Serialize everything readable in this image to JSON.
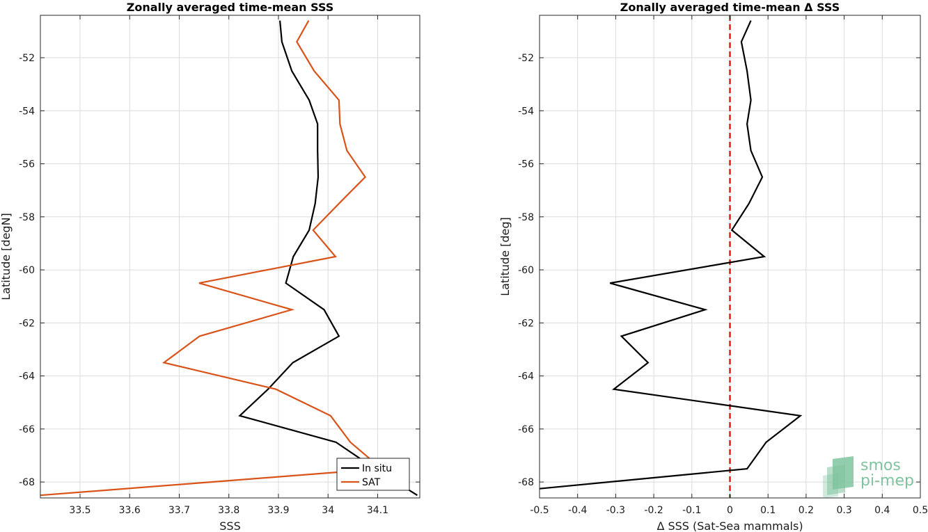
{
  "chart_data": [
    {
      "type": "line",
      "title": "Zonally averaged time-mean SSS",
      "xlabel": "SSS",
      "ylabel": "Latitude [degN]",
      "xlim": [
        33.42,
        34.185
      ],
      "ylim": [
        -68.6,
        -50.4
      ],
      "xticks": [
        33.5,
        33.6,
        33.7,
        33.8,
        33.9,
        34.0,
        34.1
      ],
      "xtick_labels": [
        "33.5",
        "33.6",
        "33.7",
        "33.8",
        "33.9",
        "34",
        "34.1"
      ],
      "yticks": [
        -52,
        -54,
        -56,
        -58,
        -60,
        -62,
        -64,
        -66,
        -68
      ],
      "ytick_labels": [
        "-52",
        "-54",
        "-56",
        "-58",
        "-60",
        "-62",
        "-64",
        "-66",
        "-68"
      ],
      "grid": true,
      "legend": "bottom-right",
      "series": [
        {
          "name": "In situ",
          "color": "#000000",
          "lat": [
            -50.6,
            -51.4,
            -52.5,
            -53.6,
            -54.5,
            -55.5,
            -56.5,
            -57.5,
            -58.5,
            -59.5,
            -60.5,
            -61.5,
            -62.5,
            -63.5,
            -64.5,
            -65.5,
            -66.5,
            -67.5,
            -68.5
          ],
          "values": [
            33.903,
            33.907,
            33.927,
            33.962,
            33.979,
            33.979,
            33.98,
            33.974,
            33.962,
            33.93,
            33.915,
            33.992,
            34.022,
            33.929,
            33.879,
            33.822,
            34.016,
            34.095,
            34.18
          ]
        },
        {
          "name": "SAT",
          "color": "#d95319",
          "lat": [
            -50.6,
            -51.4,
            -52.5,
            -53.6,
            -54.5,
            -55.5,
            -56.5,
            -57.5,
            -58.5,
            -59.5,
            -60.5,
            -61.5,
            -62.5,
            -63.5,
            -64.5,
            -65.5,
            -66.5,
            -67.5,
            -68.5
          ],
          "values": [
            33.961,
            33.937,
            33.972,
            34.022,
            34.024,
            34.038,
            34.075,
            34.022,
            33.97,
            34.015,
            33.74,
            33.927,
            33.741,
            33.669,
            33.895,
            34.005,
            34.045,
            34.108,
            33.42
          ]
        }
      ]
    },
    {
      "type": "line",
      "title": "Zonally averaged time-mean Δ SSS",
      "xlabel": "Δ SSS (Sat-Sea mammals)",
      "ylabel": "Latitude [deg]",
      "xlim": [
        -0.5,
        0.5
      ],
      "ylim": [
        -68.6,
        -50.4
      ],
      "xticks": [
        -0.5,
        -0.4,
        -0.3,
        -0.2,
        -0.1,
        0,
        0.1,
        0.2,
        0.3,
        0.4,
        0.5
      ],
      "xtick_labels": [
        "-0.5",
        "-0.4",
        "-0.3",
        "-0.2",
        "-0.1",
        "0",
        "0.1",
        "0.2",
        "0.3",
        "0.4",
        "0.5"
      ],
      "yticks": [
        -52,
        -54,
        -56,
        -58,
        -60,
        -62,
        -64,
        -66,
        -68
      ],
      "ytick_labels": [
        "-52",
        "-54",
        "-56",
        "-58",
        "-60",
        "-62",
        "-64",
        "-66",
        "-68"
      ],
      "grid": true,
      "reference_line": {
        "x": 0,
        "color": "#e31a1c",
        "style": "dashed"
      },
      "series": [
        {
          "color": "#000000",
          "lat": [
            -50.6,
            -51.4,
            -52.5,
            -53.6,
            -54.5,
            -55.5,
            -56.5,
            -57.5,
            -58.5,
            -59.5,
            -60.5,
            -61.5,
            -62.5,
            -63.5,
            -64.5,
            -65.5,
            -66.5,
            -67.5,
            -68.25
          ],
          "values": [
            0.055,
            0.03,
            0.045,
            0.055,
            0.045,
            0.055,
            0.085,
            0.05,
            0.005,
            0.09,
            -0.315,
            -0.065,
            -0.285,
            -0.215,
            -0.305,
            0.185,
            0.095,
            0.045,
            -0.5
          ]
        }
      ]
    }
  ],
  "logo": {
    "line1": "smos",
    "line2": "pi-mep",
    "color": "#7fc49f"
  }
}
